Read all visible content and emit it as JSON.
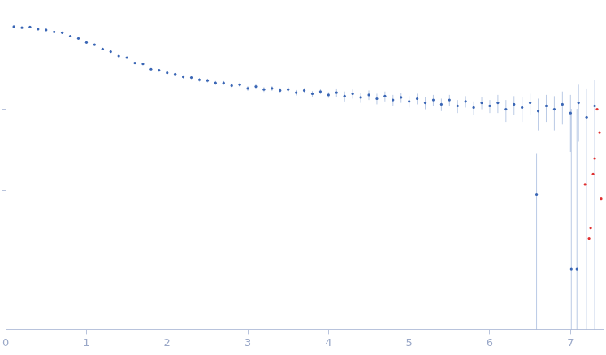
{
  "chart_data": {
    "type": "scatter",
    "log": "y",
    "grid": false,
    "tick_labels": "x",
    "xlim": [
      0,
      7.4
    ],
    "xticks": [
      0,
      1,
      2,
      3,
      4,
      5,
      6,
      7
    ],
    "ylim": [
      0.0002,
      2
    ],
    "yticks": [
      0.01,
      0.1,
      1
    ],
    "series": [
      {
        "color": "#3a66b5",
        "marker": "circle",
        "x": [
          0.1,
          0.2,
          0.3,
          0.4,
          0.5,
          0.6,
          0.7,
          0.8,
          0.9,
          1.0,
          1.1,
          1.2,
          1.3,
          1.4,
          1.5,
          1.6,
          1.7,
          1.8,
          1.9,
          2.0,
          2.1,
          2.2,
          2.3,
          2.4,
          2.5,
          2.6,
          2.7,
          2.8,
          2.9,
          3.0,
          3.1,
          3.2,
          3.3,
          3.4,
          3.5,
          3.6,
          3.7,
          3.8,
          3.9,
          4.0,
          4.1,
          4.2,
          4.3,
          4.4,
          4.5,
          4.6,
          4.7,
          4.8,
          4.9,
          5.0,
          5.1,
          5.2,
          5.3,
          5.4,
          5.5,
          5.6,
          5.7,
          5.8,
          5.9,
          6.0,
          6.1,
          6.2,
          6.3,
          6.4,
          6.5,
          6.6,
          6.7,
          6.8,
          6.9,
          7.0,
          7.1,
          7.2,
          7.3,
          6.58,
          7.01,
          7.08
        ],
        "values": [
          1.03,
          1.0,
          1.02,
          0.96,
          0.94,
          0.89,
          0.87,
          0.79,
          0.74,
          0.66,
          0.62,
          0.55,
          0.51,
          0.45,
          0.43,
          0.37,
          0.36,
          0.31,
          0.3,
          0.28,
          0.27,
          0.25,
          0.245,
          0.23,
          0.225,
          0.21,
          0.21,
          0.195,
          0.2,
          0.18,
          0.19,
          0.175,
          0.18,
          0.17,
          0.175,
          0.16,
          0.17,
          0.155,
          0.165,
          0.15,
          0.16,
          0.145,
          0.155,
          0.14,
          0.15,
          0.135,
          0.145,
          0.13,
          0.14,
          0.125,
          0.135,
          0.12,
          0.13,
          0.115,
          0.13,
          0.11,
          0.125,
          0.105,
          0.12,
          0.11,
          0.12,
          0.1,
          0.115,
          0.105,
          0.12,
          0.095,
          0.11,
          0.1,
          0.115,
          0.09,
          0.12,
          0.08,
          0.11,
          0.009,
          0.0011,
          0.0011
        ],
        "errors": [
          0.01,
          0.01,
          0.01,
          0.01,
          0.01,
          0.01,
          0.01,
          0.01,
          0.01,
          0.01,
          0.01,
          0.01,
          0.01,
          0.01,
          0.01,
          0.01,
          0.01,
          0.01,
          0.01,
          0.01,
          0.012,
          0.012,
          0.012,
          0.012,
          0.012,
          0.012,
          0.012,
          0.012,
          0.012,
          0.012,
          0.012,
          0.012,
          0.012,
          0.012,
          0.012,
          0.012,
          0.012,
          0.012,
          0.012,
          0.012,
          0.02,
          0.02,
          0.02,
          0.02,
          0.02,
          0.02,
          0.02,
          0.02,
          0.02,
          0.02,
          0.02,
          0.02,
          0.02,
          0.02,
          0.02,
          0.02,
          0.02,
          0.02,
          0.02,
          0.02,
          0.03,
          0.03,
          0.03,
          0.035,
          0.035,
          0.04,
          0.04,
          0.045,
          0.05,
          0.06,
          0.08,
          0.1,
          0.12,
          0.02,
          0.1,
          0.1
        ]
      },
      {
        "color": "#e03030",
        "marker": "circle",
        "x": [
          7.18,
          7.23,
          7.25,
          7.28,
          7.3,
          7.33,
          7.36,
          7.38
        ],
        "values": [
          0.012,
          0.0026,
          0.0035,
          0.016,
          0.025,
          0.1,
          0.052,
          0.008
        ]
      }
    ]
  }
}
